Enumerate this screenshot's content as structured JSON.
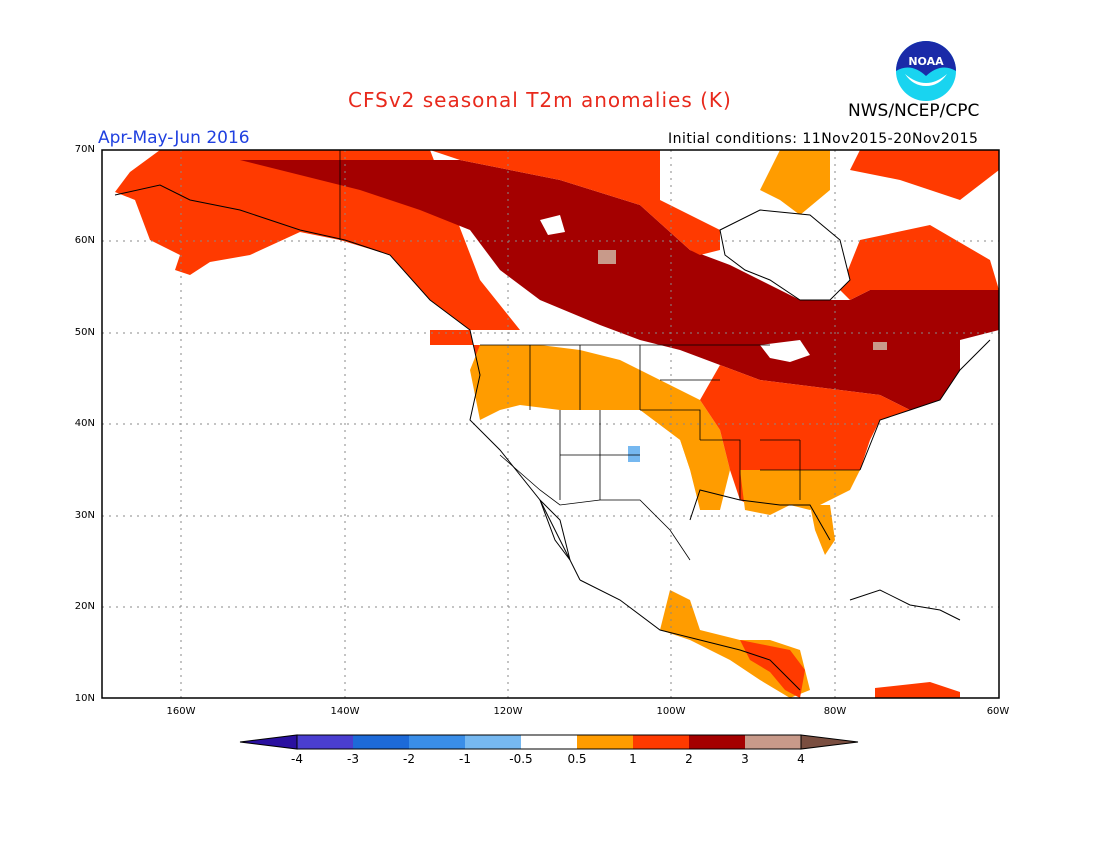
{
  "header": {
    "title": "CFSv2 seasonal T2m anomalies (K)",
    "period": "Apr-May-Jun 2016",
    "initial_conditions": "Initial conditions: 11Nov2015-20Nov2015",
    "agency": "NWS/NCEP/CPC",
    "logo_text": "NOAA"
  },
  "map": {
    "projection": "cylindrical",
    "lon_range": [
      -172,
      -60
    ],
    "lat_range": [
      10,
      70
    ],
    "lat_labels": [
      "70N",
      "60N",
      "50N",
      "40N",
      "30N",
      "20N",
      "10N"
    ],
    "lon_labels": [
      "160W",
      "140W",
      "120W",
      "100W",
      "80W",
      "60W"
    ],
    "grid": "dotted",
    "regions": [
      {
        "name": "alaska-western-canada",
        "bin": "1 to 2"
      },
      {
        "name": "central-northern-canada",
        "bin": "2 to 3"
      },
      {
        "name": "quebec-northeast",
        "bin": "2 to 3"
      },
      {
        "name": "pacific-northwest-plains",
        "bin": "0.5 to 1"
      },
      {
        "name": "southwest-us",
        "bin": "-0.5 to 0.5"
      },
      {
        "name": "southeast-us",
        "bin": "1 to 2"
      },
      {
        "name": "mexico-central-america",
        "bin": "0.5 to 1"
      },
      {
        "name": "new-mexico-spot",
        "bin": "-1 to -0.5"
      },
      {
        "name": "central-canada-spot",
        "bin": "3 to 4"
      }
    ]
  },
  "colorbar": {
    "labels": [
      "-4",
      "-3",
      "-2",
      "-1",
      "-0.5",
      "0.5",
      "1",
      "2",
      "3",
      "4"
    ],
    "colors": [
      "#2a10a0",
      "#4a3ed0",
      "#1d6ad8",
      "#3a8ee8",
      "#76b8f0",
      "#ffffff",
      "#ff9c00",
      "#ff3a00",
      "#a40000",
      "#c89a8a",
      "#7a4e40"
    ]
  }
}
